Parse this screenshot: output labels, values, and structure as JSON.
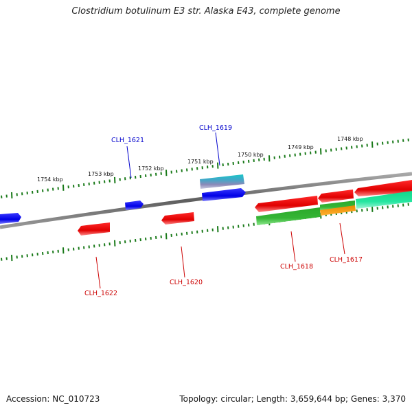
{
  "title": "Clostridium botulinum E3 str. Alaska E43, complete genome",
  "footer": {
    "accession": "Accession: NC_010723",
    "summary": "Topology: circular; Length: 3,659,644 bp; Genes: 3,370"
  },
  "colors": {
    "forward_label": "#0000cc",
    "reverse_label": "#cc0000",
    "tick": "#1a7a1a",
    "backbone": "#7a7a7a"
  },
  "ticks": {
    "labels": [
      "1754 kbp",
      "1753 kbp",
      "1752 kbp",
      "1751 kbp",
      "1750 kbp",
      "1749 kbp",
      "1748 kbp"
    ]
  },
  "genes": [
    {
      "name": "CLH_1621",
      "strand": "forward"
    },
    {
      "name": "CLH_1619",
      "strand": "forward"
    },
    {
      "name": "CLH_1622",
      "strand": "reverse"
    },
    {
      "name": "CLH_1620",
      "strand": "reverse"
    },
    {
      "name": "CLH_1618",
      "strand": "reverse"
    },
    {
      "name": "CLH_1617",
      "strand": "reverse"
    }
  ]
}
